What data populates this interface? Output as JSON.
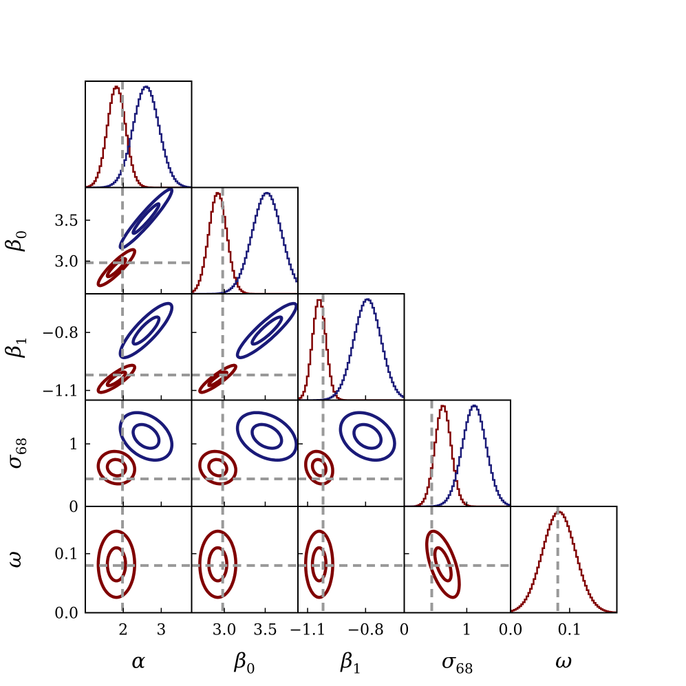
{
  "chart_data": {
    "type": "corner",
    "title": "",
    "parameters": [
      {
        "key": "alpha",
        "label": "α",
        "sub": "",
        "range": [
          1.0,
          3.8
        ],
        "truth": 1.98,
        "ticks": [
          {
            "value": 2,
            "label": "2"
          },
          {
            "value": 3,
            "label": "3"
          }
        ]
      },
      {
        "key": "beta0",
        "label": "β",
        "sub": "0",
        "range": [
          2.6,
          3.9
        ],
        "truth": 2.98,
        "ticks": [
          {
            "value": 3.0,
            "label": "3.0"
          },
          {
            "value": 3.5,
            "label": "3.5"
          }
        ]
      },
      {
        "key": "beta1",
        "label": "β",
        "sub": "1",
        "range": [
          -1.15,
          -0.6
        ],
        "truth": -1.02,
        "ticks": [
          {
            "value": -1.1,
            "label": "−1.1"
          },
          {
            "value": -0.8,
            "label": "−0.8"
          }
        ]
      },
      {
        "key": "sigma68",
        "label": "σ",
        "sub": "68",
        "range": [
          0.0,
          1.7
        ],
        "truth": 0.44,
        "ticks": [
          {
            "value": 0,
            "label": "0"
          },
          {
            "value": 1,
            "label": "1"
          }
        ]
      },
      {
        "key": "omega",
        "label": "ω",
        "sub": "",
        "range": [
          0.0,
          0.18
        ],
        "truth": 0.08,
        "ticks": [
          {
            "value": 0.0,
            "label": "0.0"
          },
          {
            "value": 0.1,
            "label": "0.1"
          }
        ]
      }
    ],
    "series": [
      {
        "name": "red",
        "color": "#800000",
        "means": {
          "alpha": 1.82,
          "beta0": 2.92,
          "beta1": -1.04,
          "sigma68": 0.62,
          "omega": 0.082
        },
        "stds": {
          "alpha": 0.24,
          "beta0": 0.11,
          "beta1": 0.035,
          "sigma68": 0.13,
          "omega": 0.028
        },
        "corr": {
          "alpha|beta0": 0.9,
          "alpha|beta1": 0.85,
          "beta0|beta1": 0.9,
          "beta1|sigma68": -0.2,
          "alpha|sigma68": -0.1,
          "beta0|sigma68": -0.15,
          "sigma68|omega": -0.6
        }
      },
      {
        "name": "blue",
        "color": "#1a1a78",
        "means": {
          "alpha": 2.6,
          "beta0": 3.52,
          "beta1": -0.79,
          "sigma68": 1.12,
          "omega": null
        },
        "stds": {
          "alpha": 0.34,
          "beta0": 0.18,
          "beta1": 0.07,
          "sigma68": 0.19,
          "omega": null
        },
        "corr": {
          "alpha|beta0": 0.95,
          "alpha|beta1": 0.85,
          "beta0|beta1": 0.9,
          "beta1|sigma68": -0.3,
          "alpha|sigma68": -0.35,
          "beta0|sigma68": -0.35
        }
      }
    ],
    "contour_levels_sigma": [
      1,
      2
    ],
    "reference_line_color": "#999999"
  }
}
